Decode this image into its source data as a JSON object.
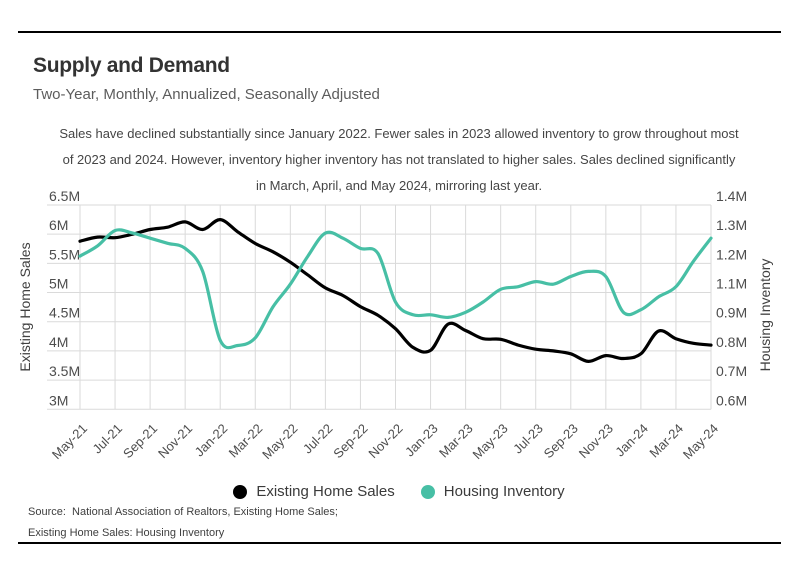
{
  "header": {
    "title": "Supply and Demand",
    "subtitle": "Two-Year, Monthly, Annualized, Seasonally Adjusted"
  },
  "description": {
    "lines": [
      "Sales have declined substantially since January 2022. Fewer sales in 2023 allowed inventory to grow throughout most",
      "of 2023 and 2024. However, inventory higher inventory has not translated to higher sales. Sales declined significantly",
      "in March, April, and May 2024, mirroring last year."
    ]
  },
  "chart_data": {
    "type": "line",
    "months": [
      "May-21",
      "Jun-21",
      "Jul-21",
      "Aug-21",
      "Sep-21",
      "Oct-21",
      "Nov-21",
      "Dec-21",
      "Jan-22",
      "Feb-22",
      "Mar-22",
      "Apr-22",
      "May-22",
      "Jun-22",
      "Jul-22",
      "Aug-22",
      "Sep-22",
      "Oct-22",
      "Nov-22",
      "Dec-22",
      "Jan-23",
      "Feb-23",
      "Mar-23",
      "Apr-23",
      "May-23",
      "Jun-23",
      "Jul-23",
      "Aug-23",
      "Sep-23",
      "Oct-23",
      "Nov-23",
      "Dec-23",
      "Jan-24",
      "Feb-24",
      "Mar-24",
      "Apr-24",
      "May-24"
    ],
    "x_tick_labels": [
      "May-21",
      "Jul-21",
      "Sep-21",
      "Nov-21",
      "Jan-22",
      "Mar-22",
      "May-22",
      "Jul-22",
      "Sep-22",
      "Nov-22",
      "Jan-23",
      "Mar-23",
      "May-23",
      "Jul-23",
      "Sep-23",
      "Nov-23",
      "Jan-24",
      "Mar-24",
      "May-24"
    ],
    "series": [
      {
        "name": "Existing Home Sales",
        "axis": "left",
        "color": "#000000",
        "unit": "M",
        "values": [
          5.88,
          5.95,
          5.94,
          6.0,
          6.08,
          6.12,
          6.21,
          6.08,
          6.25,
          6.04,
          5.84,
          5.7,
          5.52,
          5.3,
          5.08,
          4.95,
          4.76,
          4.61,
          4.38,
          4.06,
          4.01,
          4.46,
          4.35,
          4.21,
          4.2,
          4.1,
          4.03,
          4.0,
          3.95,
          3.82,
          3.92,
          3.87,
          3.95,
          4.34,
          4.21,
          4.13,
          4.1
        ]
      },
      {
        "name": "Housing Inventory",
        "axis": "right",
        "color": "#47bfa5",
        "unit": "M",
        "values": [
          1.2,
          1.24,
          1.3,
          1.29,
          1.27,
          1.25,
          1.23,
          1.14,
          0.87,
          0.85,
          0.88,
          1.0,
          1.09,
          1.2,
          1.29,
          1.27,
          1.23,
          1.21,
          1.02,
          0.97,
          0.97,
          0.96,
          0.98,
          1.02,
          1.07,
          1.08,
          1.1,
          1.09,
          1.12,
          1.14,
          1.12,
          0.98,
          0.99,
          1.04,
          1.08,
          1.18,
          1.27
        ]
      }
    ],
    "left_axis": {
      "label": "Existing Home Sales",
      "tick_labels": [
        "6.5M",
        "6M",
        "5.5M",
        "5M",
        "4.5M",
        "4M",
        "3.5M",
        "3M"
      ],
      "range": [
        3.0,
        6.5
      ]
    },
    "right_axis": {
      "label": "Housing Inventory",
      "tick_labels": [
        "1.4M",
        "1.3M",
        "1.2M",
        "1.1M",
        "0.9M",
        "0.8M",
        "0.7M",
        "0.6M"
      ],
      "range": [
        0.6,
        1.4
      ]
    },
    "grid": true,
    "legend_position": "bottom"
  },
  "legend": {
    "items": [
      {
        "label": "Existing Home Sales",
        "color": "#000000"
      },
      {
        "label": "Housing Inventory",
        "color": "#47bfa5"
      }
    ]
  },
  "source": {
    "line1": "Source:  National Association of Realtors, Existing Home Sales;",
    "line2": "Existing Home Sales: Housing Inventory"
  },
  "colors": {
    "sales_line": "#000000",
    "inventory_line": "#47bfa5",
    "gridline": "#dadada",
    "rule": "#000000"
  }
}
